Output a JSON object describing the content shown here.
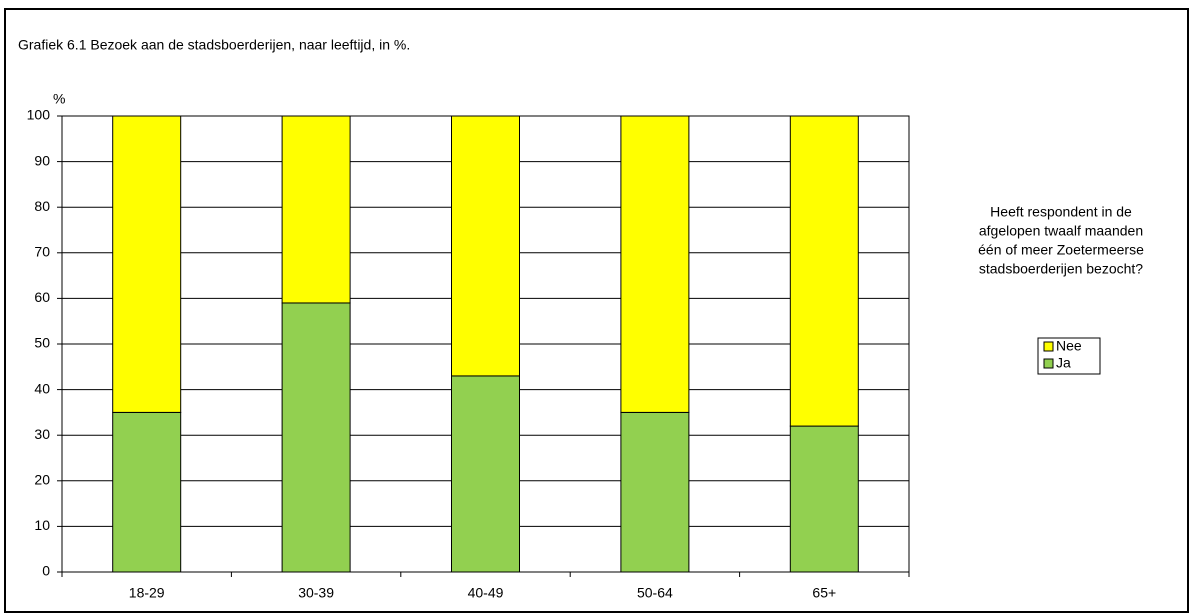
{
  "chart_data": {
    "type": "stacked_bar",
    "title": "Grafiek 6.1  Bezoek aan de stadsboerderijen, naar leeftijd, in %.",
    "y_label": "%",
    "categories": [
      "18-29",
      "30-39",
      "40-49",
      "50-64",
      "65+"
    ],
    "series": [
      {
        "name": "Ja",
        "color": "#92d050",
        "values": [
          35,
          59,
          43,
          35,
          32
        ]
      },
      {
        "name": "Nee",
        "color": "#ffff00",
        "values": [
          65,
          41,
          57,
          65,
          68
        ]
      }
    ],
    "ylim": [
      0,
      100
    ],
    "yticks": [
      0,
      10,
      20,
      30,
      40,
      50,
      60,
      70,
      80,
      90,
      100
    ],
    "grid": true,
    "legend_title": [
      "Heeft respondent in de",
      "afgelopen twaalf maanden",
      "één of meer Zoetermeerse",
      "stadsboerderijen bezocht?"
    ],
    "legend_position": "right"
  }
}
